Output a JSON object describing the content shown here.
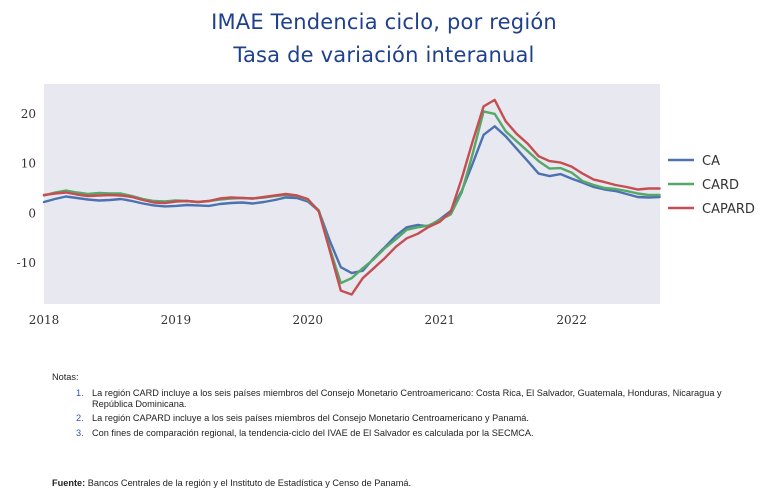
{
  "title": "IMAE Tendencia ciclo, por región",
  "subtitle": "Tasa de variación interanual",
  "chart_data": {
    "type": "line",
    "title": "IMAE Tendencia ciclo, por región",
    "subtitle": "Tasa de variación interanual",
    "xlabel": "",
    "ylabel": "",
    "xlim": [
      2018.0,
      2022.67
    ],
    "ylim": [
      -18.2,
      26
    ],
    "xticks": [
      2018,
      2019,
      2020,
      2021,
      2022
    ],
    "yticks": [
      -10,
      0,
      10,
      20
    ],
    "grid": false,
    "background": "#e8e8f0",
    "legend_position": "right",
    "x": [
      2018.0,
      2018.083,
      2018.167,
      2018.25,
      2018.333,
      2018.417,
      2018.5,
      2018.583,
      2018.667,
      2018.75,
      2018.833,
      2018.917,
      2019.0,
      2019.083,
      2019.167,
      2019.25,
      2019.333,
      2019.417,
      2019.5,
      2019.583,
      2019.667,
      2019.75,
      2019.833,
      2019.917,
      2020.0,
      2020.083,
      2020.167,
      2020.25,
      2020.333,
      2020.417,
      2020.5,
      2020.583,
      2020.667,
      2020.75,
      2020.833,
      2020.917,
      2021.0,
      2021.083,
      2021.167,
      2021.25,
      2021.333,
      2021.417,
      2021.5,
      2021.583,
      2021.667,
      2021.75,
      2021.833,
      2021.917,
      2022.0,
      2022.083,
      2022.167,
      2022.25,
      2022.333,
      2022.417,
      2022.5,
      2022.583,
      2022.667
    ],
    "series": [
      {
        "name": "CA",
        "color": "#4c72b0",
        "values": [
          2.3,
          2.9,
          3.4,
          3.1,
          2.8,
          2.6,
          2.7,
          2.9,
          2.5,
          2.0,
          1.6,
          1.4,
          1.5,
          1.7,
          1.6,
          1.5,
          1.9,
          2.1,
          2.2,
          2.0,
          2.3,
          2.7,
          3.2,
          3.1,
          2.4,
          0.5,
          -5.5,
          -10.8,
          -12.0,
          -11.5,
          -9.0,
          -6.8,
          -4.5,
          -2.8,
          -2.3,
          -2.6,
          -1.2,
          0.5,
          4.5,
          10.0,
          15.8,
          17.5,
          15.5,
          13.0,
          10.5,
          8.0,
          7.5,
          7.9,
          7.0,
          6.2,
          5.3,
          4.8,
          4.5,
          3.9,
          3.3,
          3.2,
          3.3
        ]
      },
      {
        "name": "CARD",
        "color": "#55a868",
        "values": [
          3.6,
          4.2,
          4.6,
          4.2,
          3.9,
          4.1,
          4.0,
          4.0,
          3.5,
          2.9,
          2.5,
          2.4,
          2.6,
          2.5,
          2.3,
          2.5,
          2.8,
          3.0,
          3.1,
          3.0,
          3.2,
          3.5,
          3.7,
          3.6,
          2.7,
          0.6,
          -7.0,
          -14.0,
          -13.0,
          -11.0,
          -9.2,
          -7.0,
          -5.2,
          -3.3,
          -2.8,
          -2.4,
          -1.3,
          -0.2,
          4.2,
          12.0,
          20.5,
          20.0,
          16.5,
          14.5,
          12.5,
          10.5,
          9.0,
          9.1,
          8.2,
          6.5,
          5.7,
          5.1,
          4.9,
          4.5,
          4.0,
          3.7,
          3.7
        ]
      },
      {
        "name": "CAPARD",
        "color": "#c44e52",
        "values": [
          3.7,
          4.0,
          4.2,
          3.8,
          3.5,
          3.6,
          3.7,
          3.6,
          3.3,
          2.7,
          2.2,
          2.1,
          2.4,
          2.5,
          2.3,
          2.5,
          3.0,
          3.2,
          3.1,
          3.0,
          3.3,
          3.6,
          3.9,
          3.6,
          2.9,
          0.4,
          -7.5,
          -15.5,
          -16.3,
          -13.0,
          -11.0,
          -9.0,
          -6.7,
          -5.0,
          -4.1,
          -2.7,
          -1.7,
          0.3,
          7.0,
          14.5,
          21.5,
          22.8,
          18.5,
          16.0,
          14.0,
          11.5,
          10.5,
          10.2,
          9.4,
          8.0,
          6.8,
          6.3,
          5.7,
          5.3,
          4.8,
          5.0,
          5.0
        ]
      }
    ]
  },
  "notes": {
    "label": "Notas:",
    "items": [
      {
        "num": "1.",
        "text": "La región CARD incluye a los seis países miembros del Consejo Monetario Centroamericano: Costa Rica, El Salvador, Guatemala, Honduras, Nicaragua y República Dominicana."
      },
      {
        "num": "2.",
        "text": "La región CAPARD incluye a los seis países miembros del Consejo Monetario Centroamericano y Panamá."
      },
      {
        "num": "3.",
        "text": "Con fines de comparación regional, la tendencia-ciclo del IVAE de El Salvador es calculada por la SECMCA."
      }
    ]
  },
  "source": {
    "label": "Fuente:",
    "text": " Bancos Centrales de la región y el Instituto de Estadística y Censo de Panamá."
  }
}
